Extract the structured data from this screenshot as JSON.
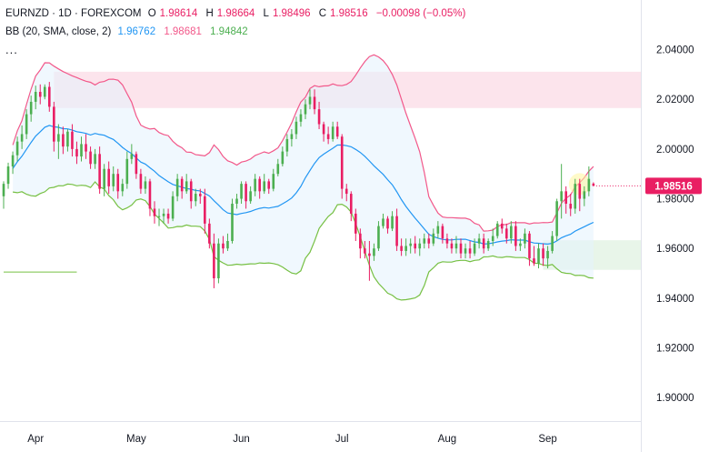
{
  "header": {
    "symbol": "EURNZD · 1D · FOREXCOM",
    "o_label": "O",
    "o_value": "1.98614",
    "h_label": "H",
    "h_value": "1.98664",
    "l_label": "L",
    "l_value": "1.98496",
    "c_label": "C",
    "c_value": "1.98516",
    "change": "−0.00098 (−0.05%)",
    "bb_label": "BB (20, SMA, close, 2)",
    "bb_basis": "1.96762",
    "bb_upper": "1.98681",
    "bb_lower": "1.94842",
    "more": "..."
  },
  "colors": {
    "up": "#4caf50",
    "down": "#e91e63",
    "basis": "#2196f3",
    "upper": "#f2588a",
    "lower": "#76c043",
    "band_fill": "#e3f2fd",
    "zone_pink": "#fce4ec",
    "zone_green": "#e8f5e9",
    "price_tag": "#e91e63",
    "highlight": "#fff59d"
  },
  "chart_data": {
    "type": "candlestick",
    "ylim": [
      1.885,
      2.047
    ],
    "yticks": [
      "2.04000",
      "2.02000",
      "2.00000",
      "1.98000",
      "1.96000",
      "1.94000",
      "1.92000",
      "1.90000"
    ],
    "ytick_values": [
      2.04,
      2.02,
      2.0,
      1.98,
      1.96,
      1.94,
      1.92,
      1.9
    ],
    "xticks": [
      "Apr",
      "May",
      "Jun",
      "Jul",
      "Aug",
      "Sep"
    ],
    "xtick_index": [
      7,
      29,
      52,
      74,
      97,
      119
    ],
    "last_price": "1.98516",
    "last_price_value": 1.98516,
    "zones": [
      {
        "kind": "resistance",
        "from_index": 11,
        "to_index": 143,
        "top": 2.0311,
        "bottom": 2.0165
      },
      {
        "kind": "support",
        "from_index": 118,
        "to_index": 143,
        "top": 1.9633,
        "bottom": 1.9514
      }
    ],
    "support_line": {
      "from_index": 0,
      "to_index": 16,
      "value": 1.9505
    },
    "highlight_index": 126,
    "candles": [
      [
        1.981,
        1.987,
        1.976,
        1.986
      ],
      [
        1.986,
        1.9945,
        1.984,
        1.993
      ],
      [
        1.993,
        1.999,
        1.99,
        1.9975
      ],
      [
        1.9975,
        2.005,
        1.995,
        2.003
      ],
      [
        2.003,
        2.0095,
        2.0,
        2.006
      ],
      [
        2.006,
        2.016,
        2.004,
        2.014
      ],
      [
        2.014,
        2.0215,
        2.011,
        2.019
      ],
      [
        2.019,
        2.0255,
        2.016,
        2.023
      ],
      [
        2.023,
        2.026,
        2.018,
        2.021
      ],
      [
        2.021,
        2.026,
        2.02,
        2.025
      ],
      [
        2.025,
        2.027,
        2.015,
        2.017
      ],
      [
        2.017,
        2.019,
        1.999,
        2.003
      ],
      [
        2.003,
        2.01,
        1.996,
        2.006
      ],
      [
        2.006,
        2.009,
        1.998,
        2.001
      ],
      [
        2.001,
        2.008,
        1.999,
        2.007
      ],
      [
        2.007,
        2.01,
        1.997,
        2.0
      ],
      [
        2.0,
        2.003,
        1.994,
        1.997
      ],
      [
        1.997,
        2.005,
        1.995,
        2.002
      ],
      [
        2.002,
        2.006,
        1.996,
        1.999
      ],
      [
        1.999,
        2.001,
        1.992,
        1.994
      ],
      [
        1.994,
        2.0,
        1.992,
        1.998
      ],
      [
        1.998,
        2.001,
        1.982,
        1.984
      ],
      [
        1.984,
        1.994,
        1.981,
        1.992
      ],
      [
        1.992,
        1.995,
        1.982,
        1.985
      ],
      [
        1.985,
        1.993,
        1.983,
        1.99
      ],
      [
        1.99,
        1.992,
        1.98,
        1.983
      ],
      [
        1.983,
        1.988,
        1.981,
        1.986
      ],
      [
        1.986,
        1.999,
        1.984,
        1.996
      ],
      [
        1.996,
        2.002,
        1.994,
        1.998
      ],
      [
        1.998,
        1.999,
        1.988,
        1.99
      ],
      [
        1.99,
        1.992,
        1.982,
        1.984
      ],
      [
        1.984,
        1.989,
        1.982,
        1.987
      ],
      [
        1.987,
        1.988,
        1.973,
        1.976
      ],
      [
        1.976,
        1.979,
        1.97,
        1.973
      ],
      [
        1.973,
        1.976,
        1.969,
        1.973
      ],
      [
        1.973,
        1.976,
        1.97,
        1.974
      ],
      [
        1.974,
        1.976,
        1.97,
        1.972
      ],
      [
        1.972,
        1.983,
        1.971,
        1.981
      ],
      [
        1.981,
        1.99,
        1.979,
        1.988
      ],
      [
        1.988,
        1.989,
        1.98,
        1.983
      ],
      [
        1.983,
        1.99,
        1.982,
        1.987
      ],
      [
        1.987,
        1.988,
        1.976,
        1.979
      ],
      [
        1.979,
        1.984,
        1.977,
        1.982
      ],
      [
        1.982,
        1.984,
        1.978,
        1.981
      ],
      [
        1.981,
        1.984,
        1.966,
        1.97
      ],
      [
        1.97,
        1.972,
        1.96,
        1.962
      ],
      [
        1.962,
        1.966,
        1.944,
        1.948
      ],
      [
        1.948,
        1.964,
        1.946,
        1.962
      ],
      [
        1.962,
        1.965,
        1.958,
        1.96
      ],
      [
        1.96,
        1.966,
        1.959,
        1.963
      ],
      [
        1.963,
        1.98,
        1.962,
        1.978
      ],
      [
        1.978,
        1.982,
        1.976,
        1.98
      ],
      [
        1.98,
        1.987,
        1.978,
        1.986
      ],
      [
        1.986,
        1.987,
        1.976,
        1.979
      ],
      [
        1.979,
        1.985,
        1.978,
        1.983
      ],
      [
        1.983,
        1.99,
        1.981,
        1.988
      ],
      [
        1.988,
        1.989,
        1.98,
        1.983
      ],
      [
        1.983,
        1.99,
        1.982,
        1.987
      ],
      [
        1.987,
        1.988,
        1.982,
        1.984
      ],
      [
        1.984,
        1.992,
        1.983,
        1.99
      ],
      [
        1.99,
        1.996,
        1.989,
        1.994
      ],
      [
        1.994,
        2.001,
        1.993,
        1.999
      ],
      [
        1.999,
        2.006,
        1.997,
        2.004
      ],
      [
        2.004,
        2.008,
        2.001,
        2.006
      ],
      [
        2.006,
        2.013,
        2.004,
        2.011
      ],
      [
        2.011,
        2.016,
        2.009,
        2.014
      ],
      [
        2.014,
        2.02,
        2.012,
        2.018
      ],
      [
        2.018,
        2.024,
        2.016,
        2.021
      ],
      [
        2.021,
        2.024,
        2.014,
        2.016
      ],
      [
        2.016,
        2.019,
        2.008,
        2.01
      ],
      [
        2.01,
        2.011,
        2.003,
        2.006
      ],
      [
        2.006,
        2.009,
        2.002,
        2.004
      ],
      [
        2.004,
        2.011,
        2.003,
        2.009
      ],
      [
        2.009,
        2.011,
        2.004,
        2.005
      ],
      [
        2.005,
        2.006,
        1.98,
        1.984
      ],
      [
        1.984,
        1.986,
        1.979,
        1.982
      ],
      [
        1.982,
        1.983,
        1.971,
        1.974
      ],
      [
        1.974,
        1.976,
        1.963,
        1.966
      ],
      [
        1.966,
        1.968,
        1.956,
        1.96
      ],
      [
        1.96,
        1.963,
        1.956,
        1.958
      ],
      [
        1.958,
        1.963,
        1.947,
        1.957
      ],
      [
        1.957,
        1.962,
        1.955,
        1.96
      ],
      [
        1.96,
        1.971,
        1.959,
        1.969
      ],
      [
        1.969,
        1.974,
        1.968,
        1.972
      ],
      [
        1.972,
        1.973,
        1.966,
        1.968
      ],
      [
        1.968,
        1.975,
        1.967,
        1.973
      ],
      [
        1.973,
        1.976,
        1.959,
        1.961
      ],
      [
        1.961,
        1.964,
        1.957,
        1.959
      ],
      [
        1.959,
        1.964,
        1.957,
        1.961
      ],
      [
        1.961,
        1.964,
        1.958,
        1.962
      ],
      [
        1.962,
        1.965,
        1.958,
        1.96
      ],
      [
        1.96,
        1.964,
        1.957,
        1.962
      ],
      [
        1.962,
        1.966,
        1.96,
        1.964
      ],
      [
        1.964,
        1.966,
        1.96,
        1.962
      ],
      [
        1.962,
        1.968,
        1.961,
        1.966
      ],
      [
        1.966,
        1.971,
        1.964,
        1.969
      ],
      [
        1.969,
        1.97,
        1.962,
        1.964
      ],
      [
        1.964,
        1.966,
        1.96,
        1.962
      ],
      [
        1.962,
        1.964,
        1.958,
        1.96
      ],
      [
        1.96,
        1.965,
        1.958,
        1.962
      ],
      [
        1.962,
        1.964,
        1.956,
        1.958
      ],
      [
        1.958,
        1.962,
        1.956,
        1.96
      ],
      [
        1.96,
        1.963,
        1.956,
        1.958
      ],
      [
        1.958,
        1.964,
        1.957,
        1.962
      ],
      [
        1.962,
        1.966,
        1.96,
        1.964
      ],
      [
        1.964,
        1.966,
        1.958,
        1.96
      ],
      [
        1.96,
        1.964,
        1.959,
        1.963
      ],
      [
        1.963,
        1.968,
        1.961,
        1.965
      ],
      [
        1.965,
        1.971,
        1.964,
        1.97
      ],
      [
        1.97,
        1.972,
        1.966,
        1.968
      ],
      [
        1.968,
        1.97,
        1.962,
        1.964
      ],
      [
        1.964,
        1.971,
        1.962,
        1.969
      ],
      [
        1.969,
        1.971,
        1.959,
        1.961
      ],
      [
        1.961,
        1.964,
        1.959,
        1.962
      ],
      [
        1.962,
        1.968,
        1.96,
        1.966
      ],
      [
        1.966,
        1.967,
        1.953,
        1.956
      ],
      [
        1.956,
        1.961,
        1.953,
        1.954
      ],
      [
        1.954,
        1.962,
        1.952,
        1.96
      ],
      [
        1.96,
        1.962,
        1.953,
        1.956
      ],
      [
        1.956,
        1.961,
        1.952,
        1.959
      ],
      [
        1.959,
        1.967,
        1.958,
        1.965
      ],
      [
        1.965,
        1.98,
        1.963,
        1.979
      ],
      [
        1.979,
        1.994,
        1.972,
        1.983
      ],
      [
        1.983,
        1.985,
        1.974,
        1.978
      ],
      [
        1.978,
        1.982,
        1.973,
        1.976
      ],
      [
        1.976,
        1.988,
        1.974,
        1.986
      ],
      [
        1.986,
        1.988,
        1.975,
        1.98
      ],
      [
        1.98,
        1.985,
        1.977,
        1.983
      ],
      [
        1.983,
        1.993,
        1.981,
        1.988
      ],
      [
        1.9861,
        1.9866,
        1.985,
        1.9852
      ]
    ]
  }
}
